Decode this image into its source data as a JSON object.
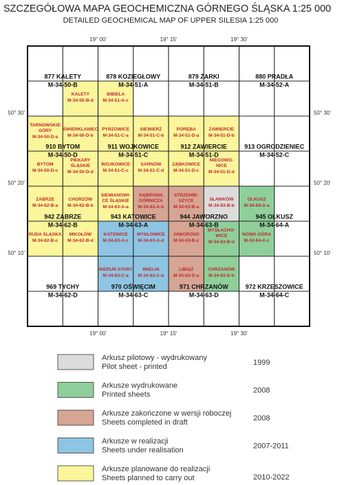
{
  "header": {
    "title": "SZCZEGÓŁOWA MAPA GEOCHEMICZNA GÓRNEGO ŚLĄSKA  1:25 000",
    "subtitle": "DETAILED GEOCHEMICAL MAP OF UPPER SILESIA 1:25 000"
  },
  "longitudes": [
    "19° 00'",
    "19° 15'",
    "19° 30'"
  ],
  "latitudes": [
    "50° 30'",
    "50° 20'",
    "50° 10'"
  ],
  "sheets": [
    [
      {
        "name": "877 KALETY",
        "code": "M-34-50-B"
      },
      {
        "name": "878 KOZIEGŁOWY",
        "code": "M-34-51-A"
      },
      {
        "name": "879 ŻARKI",
        "code": "M-34-51-B"
      },
      {
        "name": "880 PRADŁA",
        "code": "M-34-52-A"
      }
    ],
    [
      {
        "name": "910 BYTOM",
        "code": "M-34-50-D"
      },
      {
        "name": "911 WOJKOWICE",
        "code": "M-34-51-C"
      },
      {
        "name": "912 ZAWIERCIE",
        "code": "M-34-51-D"
      },
      {
        "name": "913 OGRODZIENIEC",
        "code": "M-34-52-C"
      }
    ],
    [
      {
        "name": "942 ZABRZE",
        "code": "M-34-62-B"
      },
      {
        "name": "943 KATOWICE",
        "code": "M-34-63-A"
      },
      {
        "name": "944 JAWORZNO",
        "code": "M-34-63-B"
      },
      {
        "name": "945 OLKUSZ",
        "code": "M-34-64-A"
      }
    ],
    [
      {
        "name": "969 TYCHY",
        "code": "M-34-62-D"
      },
      {
        "name": "970 OŚWIĘCIM",
        "code": "M-34-63-C"
      },
      {
        "name": "971 CHRZANÓW",
        "code": "M-34-63-D"
      },
      {
        "name": "972 KRZESZOWICE",
        "code": "M-34-64-C"
      }
    ]
  ],
  "cells": [
    [
      null,
      null,
      null,
      null,
      null,
      null,
      null,
      null
    ],
    [
      null,
      {
        "name": [
          "KALETY"
        ],
        "code": "M-34-50-B-d",
        "color": "#fbf59b"
      },
      {
        "name": [
          "BIBIELA"
        ],
        "code": "M-34-51-A-c",
        "color": "#fbf59b"
      },
      null,
      null,
      null,
      null,
      null
    ],
    [
      {
        "name": [
          "TARNOWSKIE",
          "GÓRY"
        ],
        "code": "M-34-50-D-a",
        "color": "#fbf59b"
      },
      {
        "name": [
          "ŚWIERKLANIEC"
        ],
        "code": "M-34-50-D-b",
        "color": "#fbf59b"
      },
      {
        "name": [
          "PYRZOWICE"
        ],
        "code": "M-34-51-C-a",
        "color": "#fbf59b"
      },
      {
        "name": [
          "SIEWIERZ"
        ],
        "code": "M-34-51-C-b",
        "color": "#fbf59b"
      },
      {
        "name": [
          "PORĘBA"
        ],
        "code": "M-34-51-D-a",
        "color": "#fbf59b"
      },
      {
        "name": [
          "ZAWIERCIE"
        ],
        "code": "M-34-51-D-b",
        "color": "#fbf59b"
      },
      null,
      null
    ],
    [
      {
        "name": [
          "BYTOM"
        ],
        "code": "M-34-50-D-c",
        "color": "#fbf59b"
      },
      {
        "name": [
          "PIEKARY",
          "ŚLĄSKIE"
        ],
        "code": "M-34-50-D-d",
        "color": "#fbf59b"
      },
      {
        "name": [
          "WOJKOWICE"
        ],
        "code": "M-34-51-C-c",
        "color": "#fbf59b"
      },
      {
        "name": [
          "SARNÓW"
        ],
        "code": "M-34-51-C-d",
        "color": "#fbf59b"
      },
      {
        "name": [
          "ZĄBKOWICE"
        ],
        "code": "M-34-51-D-c",
        "color": "#fbf59b"
      },
      {
        "name": [
          "NIEGOWO-",
          "NICE"
        ],
        "code": "M-34-51-D-d",
        "color": "#fbf59b"
      },
      null,
      null
    ],
    [
      {
        "name": [
          "ZABRZE"
        ],
        "code": "M-34-62-B-a",
        "color": "#fbf59b"
      },
      {
        "name": [
          "CHORZÓW"
        ],
        "code": "M-34-62-B-b",
        "color": "#fbf59b"
      },
      {
        "name": [
          "SIEMIANOWI-",
          "CE ŚLĄSKIE"
        ],
        "code": "M-34-63-A-a",
        "color": "#fbf59b"
      },
      {
        "name": [
          "DĄBROWA",
          "GÓRNICZA"
        ],
        "code": "M-34-63-A-b",
        "color": "#d7a593"
      },
      {
        "name": [
          "STRZEMIE-",
          "SZYCE"
        ],
        "code": "M-34-63-B-a",
        "color": "#d7a593"
      },
      {
        "name": [
          "SŁAWKÓW"
        ],
        "code": "M-34-63-B-b",
        "color": "#dcdcdc"
      },
      {
        "name": [
          "OLKUSZ"
        ],
        "code": "M-34-64-A-a",
        "color": "#8fcf9a"
      },
      null
    ],
    [
      {
        "name": [
          "RUDA ŚLĄSKA"
        ],
        "code": "M-34-62-B-c",
        "color": "#fbf59b"
      },
      {
        "name": [
          "MIKOŁÓW"
        ],
        "code": "M-34-62-B-d",
        "color": "#fbf59b"
      },
      {
        "name": [
          "KATOWICE"
        ],
        "code": "M-34-63-A-c",
        "color": "#8ec5e2"
      },
      {
        "name": [
          "MYSŁOWICE"
        ],
        "code": "M-34-63-A-d",
        "color": "#8ec5e2"
      },
      {
        "name": [
          "JAWORZNO"
        ],
        "code": "M-34-63-B-c",
        "color": "#d7a593"
      },
      {
        "name": [
          "MYSŁACHO-",
          "WICE"
        ],
        "code": "M-34-63-B-d",
        "color": "#8fcf9a"
      },
      {
        "name": [
          "NOWA GÓRA"
        ],
        "code": "M-34-64-A-c",
        "color": "#8fcf9a"
      },
      null
    ],
    [
      null,
      null,
      {
        "name": [
          "BIERUŃ STARY"
        ],
        "code": "M-34-63-C-a",
        "color": "#8ec5e2"
      },
      {
        "name": [
          "IMIELIN"
        ],
        "code": "M-34-63-C-b",
        "color": "#8ec5e2"
      },
      {
        "name": [
          "LIBIĄŻ"
        ],
        "code": "M-34-63-D-a",
        "color": "#d7a593"
      },
      {
        "name": [
          "CHRZANÓW"
        ],
        "code": "M-34-63-D-b",
        "color": "#8fcf9a"
      },
      null,
      null
    ],
    [
      null,
      null,
      null,
      null,
      null,
      null,
      null,
      null
    ]
  ],
  "legend": [
    {
      "pl": "Arkusz pilotowy - wydrukowany",
      "en": "Pilot sheet - printed",
      "years": "1999",
      "color": "#dcdcdc"
    },
    {
      "pl": "Arkusze wydrukowane",
      "en": "Printed sheets",
      "years": "2008",
      "color": "#8fcf9a"
    },
    {
      "pl": "Arkusze zakończone w wersji roboczej",
      "en": "Sheets completed in draft",
      "years": "2008",
      "color": "#d7a593"
    },
    {
      "pl": "Arkusze w realizacji",
      "en": "Sheets under realisation",
      "years": "2007-2011",
      "color": "#8ec5e2"
    },
    {
      "pl": "Arkusze planowane do realizacji",
      "en": "Sheets planned to carry out",
      "years": "2010-2022",
      "color": "#fbf59b"
    }
  ]
}
